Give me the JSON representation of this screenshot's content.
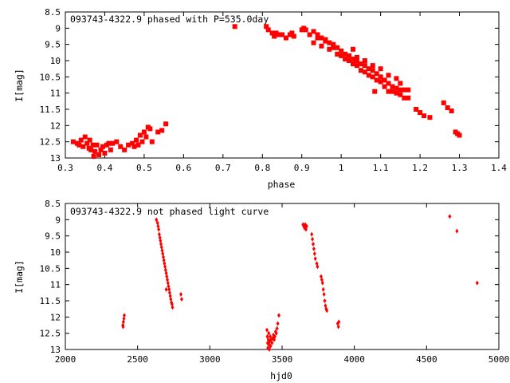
{
  "marker_color": "#ff0000",
  "chart_data": [
    {
      "type": "scatter",
      "title": "093743-4322.9 phased with P=535.0day",
      "xlabel": "phase",
      "ylabel": "I[mag]",
      "xlim": [
        0.3,
        1.4
      ],
      "ylim": [
        8.5,
        13
      ],
      "y_inverted": true,
      "grid": false,
      "marker": "filled-square",
      "xticks": [
        "0.3",
        "0.4",
        "0.5",
        "0.6",
        "0.7",
        "0.8",
        "0.9",
        "1",
        "1.1",
        "1.2",
        "1.3",
        "1.4"
      ],
      "yticks": [
        "8.5",
        "9",
        "9.5",
        "10",
        "10.5",
        "11",
        "11.5",
        "12",
        "12.5",
        "13"
      ],
      "points": [
        [
          0.32,
          12.5
        ],
        [
          0.33,
          12.55
        ],
        [
          0.335,
          12.6
        ],
        [
          0.34,
          12.45
        ],
        [
          0.345,
          12.65
        ],
        [
          0.35,
          12.35
        ],
        [
          0.355,
          12.55
        ],
        [
          0.36,
          12.7
        ],
        [
          0.362,
          12.45
        ],
        [
          0.365,
          12.75
        ],
        [
          0.37,
          12.6
        ],
        [
          0.372,
          12.95
        ],
        [
          0.375,
          12.8
        ],
        [
          0.38,
          12.6
        ],
        [
          0.385,
          12.9
        ],
        [
          0.39,
          12.75
        ],
        [
          0.395,
          12.65
        ],
        [
          0.4,
          12.85
        ],
        [
          0.405,
          12.6
        ],
        [
          0.41,
          12.55
        ],
        [
          0.415,
          12.75
        ],
        [
          0.42,
          12.55
        ],
        [
          0.43,
          12.5
        ],
        [
          0.44,
          12.65
        ],
        [
          0.45,
          12.75
        ],
        [
          0.46,
          12.6
        ],
        [
          0.47,
          12.55
        ],
        [
          0.475,
          12.65
        ],
        [
          0.48,
          12.45
        ],
        [
          0.485,
          12.6
        ],
        [
          0.49,
          12.3
        ],
        [
          0.495,
          12.5
        ],
        [
          0.5,
          12.2
        ],
        [
          0.505,
          12.35
        ],
        [
          0.51,
          12.05
        ],
        [
          0.515,
          12.1
        ],
        [
          0.52,
          12.5
        ],
        [
          0.535,
          12.2
        ],
        [
          0.545,
          12.15
        ],
        [
          0.555,
          11.95
        ],
        [
          0.73,
          8.95
        ],
        [
          0.81,
          8.95
        ],
        [
          0.815,
          9.05
        ],
        [
          0.825,
          9.15
        ],
        [
          0.83,
          9.25
        ],
        [
          0.835,
          9.15
        ],
        [
          0.84,
          9.2
        ],
        [
          0.85,
          9.2
        ],
        [
          0.86,
          9.3
        ],
        [
          0.87,
          9.2
        ],
        [
          0.875,
          9.15
        ],
        [
          0.88,
          9.25
        ],
        [
          0.9,
          9.05
        ],
        [
          0.905,
          9.0
        ],
        [
          0.91,
          9.05
        ],
        [
          0.92,
          9.2
        ],
        [
          0.93,
          9.1
        ],
        [
          0.94,
          9.2
        ],
        [
          0.95,
          9.3
        ],
        [
          0.96,
          9.35
        ],
        [
          0.97,
          9.45
        ],
        [
          0.98,
          9.5
        ],
        [
          0.99,
          9.6
        ],
        [
          1.0,
          9.7
        ],
        [
          1.01,
          9.8
        ],
        [
          1.02,
          9.85
        ],
        [
          1.03,
          9.95
        ],
        [
          1.04,
          10.0
        ],
        [
          1.05,
          10.1
        ],
        [
          1.06,
          10.15
        ],
        [
          1.07,
          10.25
        ],
        [
          1.08,
          10.3
        ],
        [
          1.09,
          10.4
        ],
        [
          1.1,
          10.5
        ],
        [
          1.11,
          10.6
        ],
        [
          1.12,
          10.7
        ],
        [
          1.13,
          10.8
        ],
        [
          1.14,
          10.85
        ],
        [
          0.93,
          9.45
        ],
        [
          0.95,
          9.55
        ],
        [
          0.97,
          9.65
        ],
        [
          0.99,
          9.8
        ],
        [
          1.01,
          9.95
        ],
        [
          1.03,
          10.1
        ],
        [
          1.05,
          10.3
        ],
        [
          1.07,
          10.45
        ],
        [
          1.09,
          10.6
        ],
        [
          1.11,
          10.8
        ],
        [
          1.13,
          10.95
        ],
        [
          1.15,
          11.05
        ],
        [
          1.16,
          11.15
        ],
        [
          1.17,
          11.15
        ],
        [
          0.94,
          9.3
        ],
        [
          0.96,
          9.4
        ],
        [
          0.98,
          9.6
        ],
        [
          1.0,
          9.85
        ],
        [
          1.02,
          10.0
        ],
        [
          1.04,
          10.15
        ],
        [
          1.06,
          10.35
        ],
        [
          1.08,
          10.5
        ],
        [
          1.1,
          10.65
        ],
        [
          1.12,
          10.95
        ],
        [
          1.14,
          11.0
        ],
        [
          1.15,
          10.9
        ],
        [
          1.16,
          10.9
        ],
        [
          1.17,
          10.9
        ],
        [
          1.03,
          9.65
        ],
        [
          1.04,
          9.9
        ],
        [
          1.06,
          10.0
        ],
        [
          1.08,
          10.15
        ],
        [
          1.1,
          10.25
        ],
        [
          1.12,
          10.45
        ],
        [
          1.14,
          10.55
        ],
        [
          1.15,
          10.7
        ],
        [
          1.085,
          10.95
        ],
        [
          1.19,
          11.5
        ],
        [
          1.2,
          11.6
        ],
        [
          1.21,
          11.7
        ],
        [
          1.225,
          11.75
        ],
        [
          1.26,
          11.3
        ],
        [
          1.27,
          11.45
        ],
        [
          1.28,
          11.55
        ],
        [
          1.29,
          12.2
        ],
        [
          1.295,
          12.25
        ],
        [
          1.3,
          12.3
        ]
      ]
    },
    {
      "type": "scatter",
      "title": "093743-4322.9 not phased light curve",
      "xlabel": "hjd0",
      "ylabel": "I[mag]",
      "xlim": [
        2000,
        5000
      ],
      "ylim": [
        8.5,
        13
      ],
      "y_inverted": true,
      "grid": false,
      "marker": "filled-diamond",
      "xticks": [
        "2000",
        "2500",
        "3000",
        "3500",
        "4000",
        "4500",
        "5000"
      ],
      "yticks": [
        "8.5",
        "9",
        "9.5",
        "10",
        "10.5",
        "11",
        "11.5",
        "12",
        "12.5",
        "13"
      ],
      "points": [
        [
          2398,
          12.25
        ],
        [
          2400,
          12.3
        ],
        [
          2402,
          12.15
        ],
        [
          2405,
          12.05
        ],
        [
          2408,
          11.95
        ],
        [
          2630,
          9.0
        ],
        [
          2638,
          9.1
        ],
        [
          2642,
          9.2
        ],
        [
          2646,
          9.3
        ],
        [
          2650,
          9.45
        ],
        [
          2654,
          9.55
        ],
        [
          2658,
          9.65
        ],
        [
          2662,
          9.75
        ],
        [
          2666,
          9.85
        ],
        [
          2670,
          9.95
        ],
        [
          2674,
          10.05
        ],
        [
          2678,
          10.15
        ],
        [
          2682,
          10.25
        ],
        [
          2686,
          10.35
        ],
        [
          2690,
          10.45
        ],
        [
          2694,
          10.55
        ],
        [
          2698,
          10.65
        ],
        [
          2702,
          10.75
        ],
        [
          2706,
          10.85
        ],
        [
          2710,
          10.95
        ],
        [
          2714,
          11.05
        ],
        [
          2718,
          11.15
        ],
        [
          2722,
          11.25
        ],
        [
          2726,
          11.35
        ],
        [
          2730,
          11.45
        ],
        [
          2734,
          11.55
        ],
        [
          2738,
          11.6
        ],
        [
          2742,
          11.7
        ],
        [
          2698,
          11.15
        ],
        [
          2800,
          11.3
        ],
        [
          2805,
          11.45
        ],
        [
          3395,
          12.4
        ],
        [
          3398,
          12.6
        ],
        [
          3400,
          12.8
        ],
        [
          3402,
          12.95
        ],
        [
          3405,
          12.7
        ],
        [
          3408,
          12.5
        ],
        [
          3410,
          12.85
        ],
        [
          3412,
          13.0
        ],
        [
          3415,
          12.75
        ],
        [
          3418,
          12.6
        ],
        [
          3420,
          12.9
        ],
        [
          3425,
          12.7
        ],
        [
          3430,
          12.8
        ],
        [
          3435,
          12.65
        ],
        [
          3440,
          12.55
        ],
        [
          3445,
          12.7
        ],
        [
          3450,
          12.6
        ],
        [
          3455,
          12.45
        ],
        [
          3460,
          12.5
        ],
        [
          3465,
          12.35
        ],
        [
          3470,
          12.2
        ],
        [
          3478,
          11.95
        ],
        [
          3645,
          9.15
        ],
        [
          3650,
          9.2
        ],
        [
          3655,
          9.25
        ],
        [
          3660,
          9.15
        ],
        [
          3665,
          9.3
        ],
        [
          3670,
          9.2
        ],
        [
          3705,
          9.45
        ],
        [
          3710,
          9.6
        ],
        [
          3715,
          9.75
        ],
        [
          3720,
          9.9
        ],
        [
          3725,
          10.05
        ],
        [
          3730,
          10.2
        ],
        [
          3740,
          10.35
        ],
        [
          3745,
          10.45
        ],
        [
          3770,
          10.75
        ],
        [
          3775,
          10.85
        ],
        [
          3780,
          10.95
        ],
        [
          3785,
          11.15
        ],
        [
          3790,
          11.3
        ],
        [
          3795,
          11.5
        ],
        [
          3800,
          11.65
        ],
        [
          3805,
          11.75
        ],
        [
          3810,
          11.8
        ],
        [
          3885,
          12.2
        ],
        [
          3890,
          12.3
        ],
        [
          3893,
          12.15
        ],
        [
          4660,
          8.9
        ],
        [
          4710,
          9.35
        ],
        [
          4850,
          10.95
        ]
      ]
    }
  ]
}
